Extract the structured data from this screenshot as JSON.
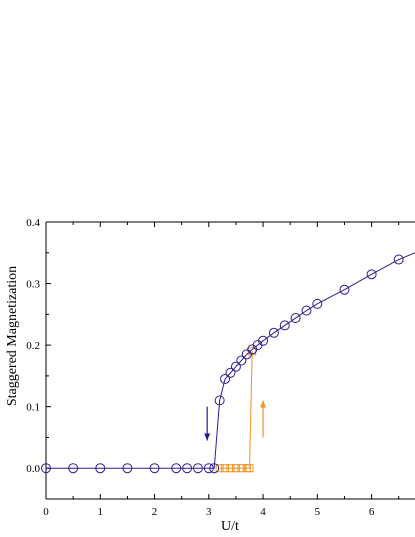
{
  "chart_data": {
    "type": "scatter",
    "xlabel": "U/t",
    "ylabel": "Staggered Magnetization",
    "xlim": [
      0,
      6.8
    ],
    "ylim": [
      -0.05,
      0.4
    ],
    "x_ticks": [
      0,
      1,
      2,
      3,
      4,
      5,
      6
    ],
    "y_ticks": [
      0.0,
      0.1,
      0.2,
      0.3,
      0.4
    ],
    "x_tick_labels": [
      "0",
      "1",
      "2",
      "3",
      "4",
      "5",
      "6"
    ],
    "y_tick_labels": [
      "0.0",
      "0.1",
      "0.2",
      "0.3",
      "0.4"
    ],
    "grid": false,
    "series": [
      {
        "marker": "circle",
        "color": "#2b1f8f",
        "x": [
          0,
          0.5,
          1.0,
          1.5,
          2.0,
          2.4,
          2.6,
          2.8,
          3.0,
          3.1,
          3.2,
          3.3,
          3.4,
          3.5,
          3.6,
          3.7,
          3.8,
          3.9,
          4.0,
          4.2,
          4.4,
          4.6,
          4.8,
          5.0,
          5.5,
          6.0,
          6.5
        ],
        "y": [
          0,
          0,
          0,
          0,
          0,
          0,
          0,
          0,
          0,
          0,
          0.11,
          0.145,
          0.155,
          0.165,
          0.175,
          0.185,
          0.193,
          0.2,
          0.207,
          0.22,
          0.232,
          0.244,
          0.256,
          0.267,
          0.29,
          0.315,
          0.339
        ]
      },
      {
        "marker": "square",
        "color": "#f0941e",
        "x": [
          3.2,
          3.3,
          3.4,
          3.5,
          3.6,
          3.7,
          3.75,
          3.8
        ],
        "y": [
          0,
          0,
          0,
          0,
          0,
          0,
          0,
          0.19
        ]
      }
    ],
    "line_tail": {
      "x": 6.8,
      "y": 0.35
    },
    "annotations": [
      {
        "type": "arrow",
        "direction": "down",
        "color": "#1c1c8c",
        "x": 2.97,
        "y_from": 0.1,
        "y_to": 0.045
      },
      {
        "type": "arrow",
        "direction": "up",
        "color": "#f0941e",
        "x": 4.0,
        "y_from": 0.05,
        "y_to": 0.11
      }
    ]
  }
}
